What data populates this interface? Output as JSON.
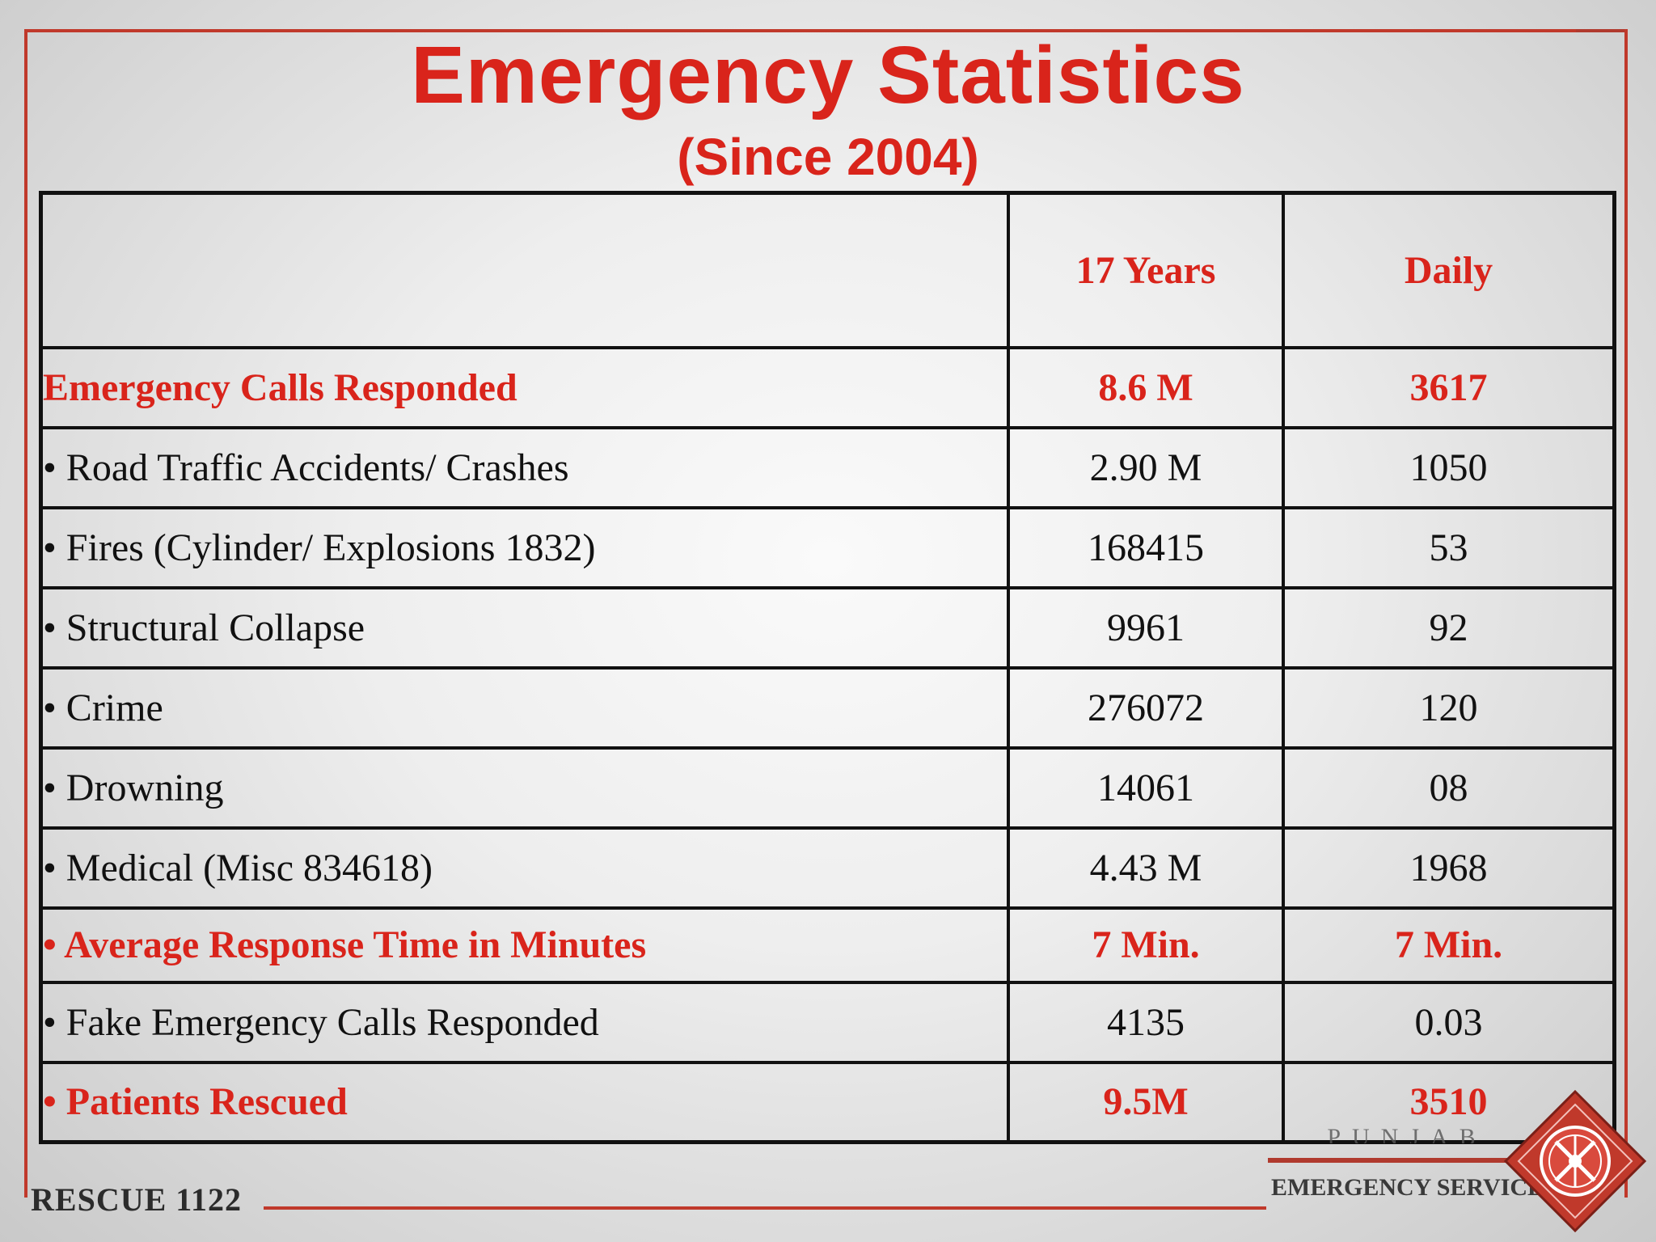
{
  "title": "Emergency Statistics",
  "subtitle": "(Since 2004)",
  "table": {
    "header": {
      "label": "",
      "years": "17 Years",
      "daily": "Daily"
    },
    "rows": [
      {
        "label": "Emergency Calls Responded",
        "years": "8.6 M",
        "daily": "3617",
        "highlight": true
      },
      {
        "label": "• Road Traffic Accidents/ Crashes",
        "years": "2.90 M",
        "daily": "1050",
        "highlight": false
      },
      {
        "label": "• Fires (Cylinder/ Explosions 1832)",
        "years": "168415",
        "daily": "53",
        "highlight": false
      },
      {
        "label": "• Structural Collapse",
        "years": "9961",
        "daily": "92",
        "highlight": false
      },
      {
        "label": "• Crime",
        "years": "276072",
        "daily": "120",
        "highlight": false
      },
      {
        "label": "• Drowning",
        "years": "14061",
        "daily": "08",
        "highlight": false
      },
      {
        "label": "• Medical (Misc 834618)",
        "years": "4.43 M",
        "daily": "1968",
        "highlight": false
      },
      {
        "label": "• Average Response Time in Minutes",
        "years": "7  Min.",
        "daily": "7  Min.",
        "highlight": true
      },
      {
        "label": "•  Fake Emergency Calls Responded",
        "years": "4135",
        "daily": "0.03",
        "highlight": false
      },
      {
        "label": "• Patients Rescued",
        "years": "9.5M",
        "daily": "3510",
        "highlight": true
      }
    ]
  },
  "footer": {
    "left_text": "RESCUE 1122",
    "brand_region": "PUNJAB",
    "brand_name": "EMERGENCY SERVICE"
  },
  "colors": {
    "accent_red": "#d9241b",
    "frame_red": "#c0392b",
    "text_dark": "#111111"
  },
  "icons": {
    "logo": "rescue-emblem-icon"
  }
}
